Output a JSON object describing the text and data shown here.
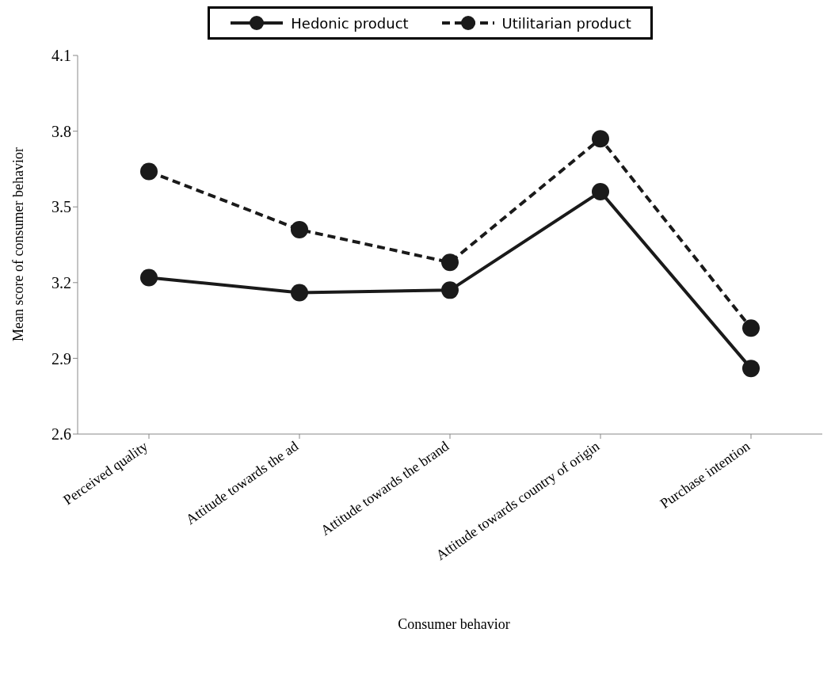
{
  "chart_data": {
    "type": "line",
    "xlabel": "Consumer behavior",
    "ylabel": "Mean score of consumer behavior",
    "categories": [
      "Perceived quality",
      "Attitude towards the ad",
      "Attitude towards the brand",
      "Attitude towards country of origin",
      "Purchase intention"
    ],
    "series": [
      {
        "name": "Hedonic product",
        "color": "#1a1a1a",
        "line_style": "solid",
        "values": [
          3.22,
          3.16,
          3.17,
          3.56,
          2.86
        ]
      },
      {
        "name": "Utilitarian product",
        "color": "#1a1a1a",
        "line_style": "dashed",
        "values": [
          3.64,
          3.41,
          3.28,
          3.77,
          3.02
        ]
      }
    ],
    "ylim": [
      2.6,
      4.1
    ],
    "yticks": [
      2.6,
      2.9,
      3.2,
      3.5,
      3.8,
      4.1
    ],
    "grid": false,
    "legend": "top",
    "marker": "circle"
  }
}
